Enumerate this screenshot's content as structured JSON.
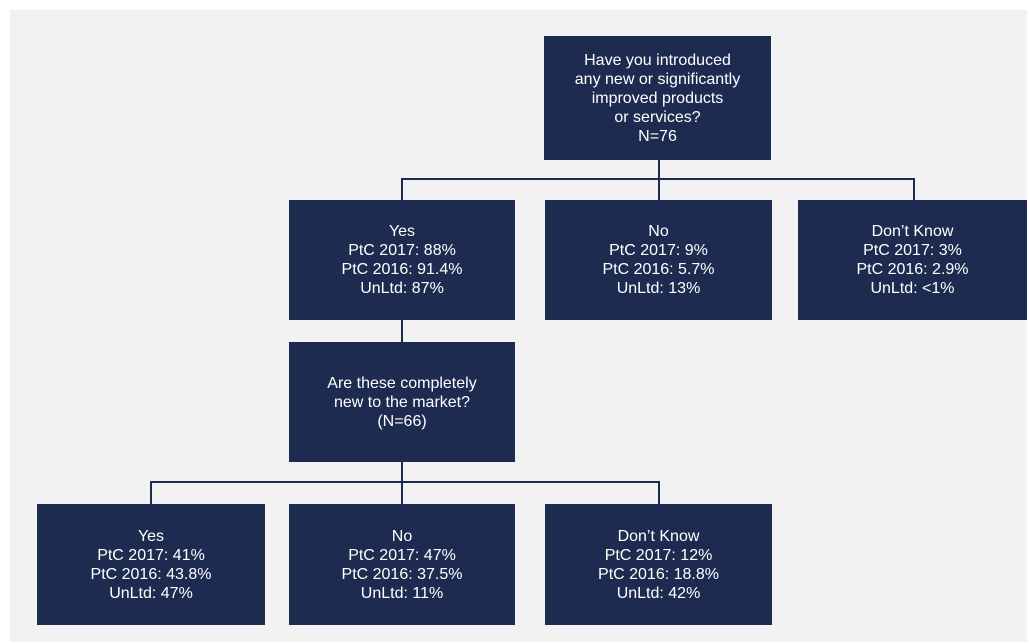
{
  "colors": {
    "node_fill": "#1c2b4f",
    "node_text": "#ffffff",
    "connector": "#1c2b4f",
    "background": "#f2f2f2"
  },
  "root": {
    "lines": [
      "Have you introduced",
      "any new or significantly",
      "improved products",
      "or services?",
      "N=76"
    ]
  },
  "level1": [
    {
      "lines": [
        "Yes",
        "PtC 2017: 88%",
        "PtC 2016: 91.4%",
        "UnLtd: 87%"
      ]
    },
    {
      "lines": [
        "No",
        "PtC 2017: 9%",
        "PtC 2016: 5.7%",
        "UnLtd: 13%"
      ]
    },
    {
      "lines": [
        "Don’t Know",
        "PtC 2017: 3%",
        "PtC 2016: 2.9%",
        "UnLtd: <1%"
      ]
    }
  ],
  "question2": {
    "lines": [
      "Are these completely",
      "new to the market?",
      "(N=66)"
    ]
  },
  "level2": [
    {
      "lines": [
        "Yes",
        "PtC 2017: 41%",
        "PtC 2016: 43.8%",
        "UnLtd: 47%"
      ]
    },
    {
      "lines": [
        "No",
        "PtC 2017: 47%",
        "PtC 2016: 37.5%",
        "UnLtd: 11%"
      ]
    },
    {
      "lines": [
        "Don’t Know",
        "PtC 2017: 12%",
        "PtC 2016: 18.8%",
        "UnLtd: 42%"
      ]
    }
  ]
}
